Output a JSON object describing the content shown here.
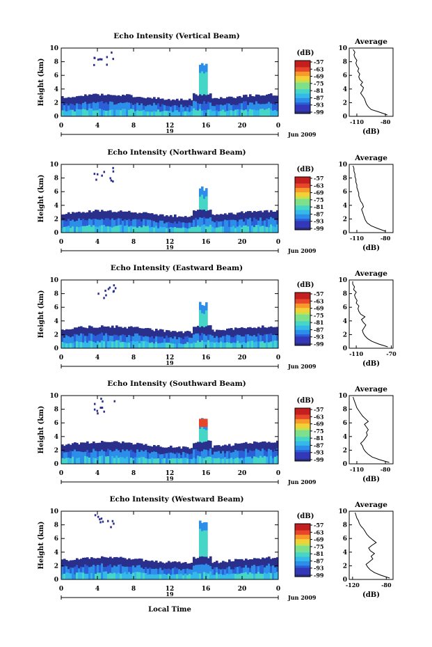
{
  "figure": {
    "xlabel": "Local Time",
    "date_label": "Jun 2009",
    "day_label": "19",
    "colorbar_unit": "(dB)",
    "avg_title": "Average",
    "avg_xlabel": "(dB)",
    "ylabel": "Height (km)"
  },
  "chart_data": [
    {
      "type": "heatmap",
      "title": "Echo Intensity (Vertical Beam)",
      "ylabel": "Height (km)",
      "xlabel": "Local Time",
      "x_ticks": [
        "0",
        "4",
        "8",
        "12",
        "16",
        "20",
        "0"
      ],
      "y_ticks": [
        "0",
        "2",
        "4",
        "6",
        "8",
        "10"
      ],
      "xlim": [
        0,
        24
      ],
      "ylim": [
        0,
        10
      ],
      "colorbar_ticks": [
        "-57",
        "-63",
        "-69",
        "-75",
        "-81",
        "-87",
        "-93",
        "-99"
      ],
      "avg": {
        "title": "Average",
        "x_ticks": [
          "-110",
          "-80"
        ],
        "xlim": [
          -118,
          -72
        ],
        "heights": [
          0.2,
          0.6,
          1.0,
          1.4,
          1.8,
          2.2,
          2.6,
          3.0,
          3.4,
          3.8,
          4.2,
          4.6,
          5.0,
          5.4,
          5.8,
          6.2,
          6.6,
          7.0,
          7.4,
          7.8,
          8.2,
          8.6,
          9.0,
          9.4,
          9.8
        ],
        "values": [
          -78,
          -86,
          -95,
          -98,
          -100,
          -101,
          -102,
          -104,
          -106,
          -104,
          -103,
          -106,
          -104,
          -107,
          -108,
          -107,
          -109,
          -108,
          -110,
          -111,
          -110,
          -112,
          -113,
          -112,
          -114
        ]
      }
    },
    {
      "type": "heatmap",
      "title": "Echo Intensity (Northward Beam)",
      "ylabel": "Height (km)",
      "xlabel": "Local Time",
      "x_ticks": [
        "0",
        "4",
        "8",
        "12",
        "16",
        "20",
        "0"
      ],
      "y_ticks": [
        "0",
        "2",
        "4",
        "6",
        "8",
        "10"
      ],
      "xlim": [
        0,
        24
      ],
      "ylim": [
        0,
        10
      ],
      "colorbar_ticks": [
        "-57",
        "-63",
        "-69",
        "-75",
        "-81",
        "-87",
        "-93",
        "-99"
      ],
      "avg": {
        "title": "Average",
        "x_ticks": [
          "-110",
          "-80"
        ],
        "xlim": [
          -118,
          -72
        ],
        "heights": [
          0.2,
          0.6,
          1.0,
          1.4,
          1.8,
          2.2,
          2.6,
          3.0,
          3.4,
          3.8,
          4.2,
          4.6,
          5.0,
          5.4,
          5.8,
          6.2,
          6.6,
          7.0,
          7.4,
          7.8,
          8.2,
          8.6,
          9.0,
          9.4,
          9.8
        ],
        "values": [
          -80,
          -88,
          -95,
          -99,
          -101,
          -102,
          -103,
          -104,
          -105,
          -103,
          -104,
          -106,
          -107,
          -108,
          -108,
          -109,
          -110,
          -110,
          -111,
          -111,
          -112,
          -112,
          -113,
          -113,
          -114
        ]
      }
    },
    {
      "type": "heatmap",
      "title": "Echo Intensity (Eastward Beam)",
      "ylabel": "Height (km)",
      "xlabel": "Local Time",
      "x_ticks": [
        "0",
        "4",
        "8",
        "12",
        "16",
        "20",
        "0"
      ],
      "y_ticks": [
        "0",
        "2",
        "4",
        "6",
        "8",
        "10"
      ],
      "xlim": [
        0,
        24
      ],
      "ylim": [
        0,
        10
      ],
      "colorbar_ticks": [
        "-57",
        "-63",
        "-69",
        "-75",
        "-81",
        "-87",
        "-93",
        "-99"
      ],
      "avg": {
        "title": "Average",
        "x_ticks": [
          "-110",
          "-70"
        ],
        "xlim": [
          -118,
          -68
        ],
        "heights": [
          0.2,
          0.6,
          1.0,
          1.4,
          1.8,
          2.2,
          2.6,
          3.0,
          3.4,
          3.8,
          4.2,
          4.6,
          5.0,
          5.4,
          5.8,
          6.2,
          6.6,
          7.0,
          7.4,
          7.8,
          8.2,
          8.6,
          9.0,
          9.4,
          9.8
        ],
        "values": [
          -74,
          -84,
          -92,
          -97,
          -100,
          -102,
          -103,
          -101,
          -99,
          -102,
          -104,
          -100,
          -105,
          -107,
          -108,
          -107,
          -110,
          -109,
          -111,
          -112,
          -110,
          -113,
          -112,
          -114,
          -114
        ]
      }
    },
    {
      "type": "heatmap",
      "title": "Echo Intensity (Southward Beam)",
      "ylabel": "Height (km)",
      "xlabel": "Local Time",
      "x_ticks": [
        "0",
        "4",
        "8",
        "12",
        "16",
        "20",
        "0"
      ],
      "y_ticks": [
        "0",
        "2",
        "4",
        "6",
        "8",
        "10"
      ],
      "xlim": [
        0,
        24
      ],
      "ylim": [
        0,
        10
      ],
      "colorbar_ticks": [
        "-57",
        "-63",
        "-69",
        "-75",
        "-81",
        "-87",
        "-93",
        "-99"
      ],
      "avg": {
        "title": "Average",
        "x_ticks": [
          "-110",
          "-80"
        ],
        "xlim": [
          -118,
          -72
        ],
        "heights": [
          0.2,
          0.6,
          1.0,
          1.4,
          1.8,
          2.2,
          2.6,
          3.0,
          3.4,
          3.8,
          4.2,
          4.6,
          5.0,
          5.4,
          5.8,
          6.2,
          6.6,
          7.0,
          7.4,
          7.8,
          8.2,
          8.6,
          9.0,
          9.4,
          9.8
        ],
        "values": [
          -76,
          -86,
          -94,
          -98,
          -101,
          -103,
          -104,
          -106,
          -103,
          -101,
          -99,
          -100,
          -98,
          -100,
          -102,
          -98,
          -101,
          -104,
          -106,
          -108,
          -110,
          -111,
          -112,
          -113,
          -114
        ]
      }
    },
    {
      "type": "heatmap",
      "title": "Echo Intensity (Westward Beam)",
      "ylabel": "Height (km)",
      "xlabel": "Local Time",
      "x_ticks": [
        "0",
        "4",
        "8",
        "12",
        "16",
        "20",
        "0"
      ],
      "y_ticks": [
        "0",
        "2",
        "4",
        "6",
        "8",
        "10"
      ],
      "xlim": [
        0,
        24
      ],
      "ylim": [
        0,
        10
      ],
      "colorbar_ticks": [
        "-57",
        "-63",
        "-69",
        "-75",
        "-81",
        "-87",
        "-93",
        "-99"
      ],
      "avg": {
        "title": "Average",
        "x_ticks": [
          "-120",
          "-80"
        ],
        "xlim": [
          -124,
          -72
        ],
        "heights": [
          0.2,
          0.6,
          1.0,
          1.4,
          1.8,
          2.2,
          2.6,
          3.0,
          3.4,
          3.8,
          4.2,
          4.6,
          5.0,
          5.4,
          5.8,
          6.2,
          6.6,
          7.0,
          7.4,
          7.8,
          8.2,
          8.6,
          9.0,
          9.4,
          9.8
        ],
        "values": [
          -76,
          -86,
          -94,
          -99,
          -102,
          -104,
          -100,
          -96,
          -98,
          -94,
          -99,
          -101,
          -97,
          -92,
          -96,
          -100,
          -103,
          -105,
          -107,
          -110,
          -112,
          -113,
          -115,
          -116,
          -117
        ]
      }
    }
  ]
}
